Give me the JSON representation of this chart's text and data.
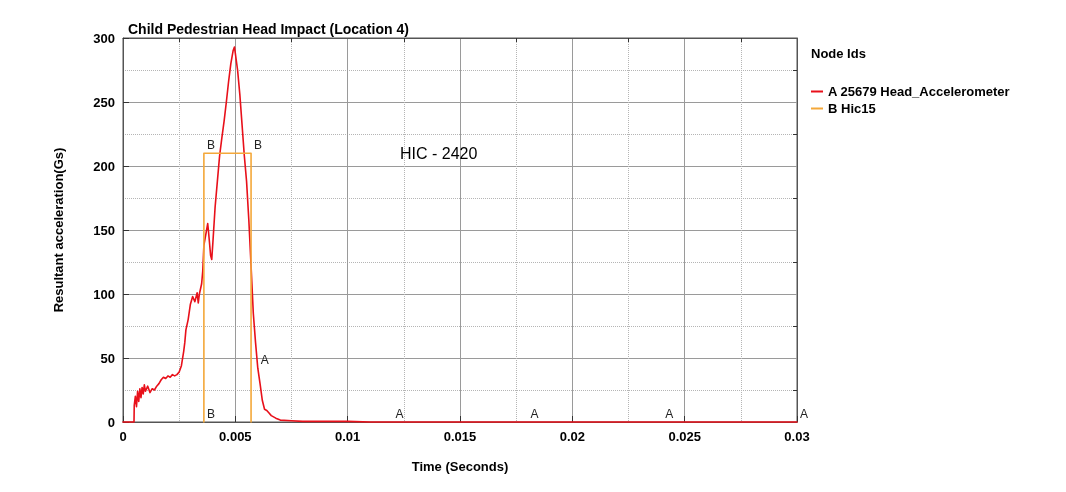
{
  "chart_data": {
    "type": "line",
    "title": "Child Pedestrian Head Impact (Location 4)",
    "xlabel": "Time (Seconds)",
    "ylabel": "Resultant acceleration(Gs)",
    "legend_title": "Node Ids",
    "annotations": [
      "HIC - 2420",
      {
        "text": "A",
        "x": 0.006,
        "y": 42
      },
      {
        "text": "A",
        "x": 0.012,
        "y": 0
      },
      {
        "text": "A",
        "x": 0.018,
        "y": 0
      },
      {
        "text": "A",
        "x": 0.024,
        "y": 0
      },
      {
        "text": "A",
        "x": 0.03,
        "y": 0
      },
      {
        "text": "B",
        "x": 0.0036,
        "y": 210
      },
      {
        "text": "B",
        "x": 0.0057,
        "y": 210
      },
      {
        "text": "B",
        "x": 0.0036,
        "y": 0
      }
    ],
    "series": [
      {
        "name": "A 25679 Head_Accelerometer",
        "color": "#e8101a",
        "x": [
          0,
          0.00049,
          0.0005,
          0.00055,
          0.0006,
          0.00065,
          0.0007,
          0.00075,
          0.0008,
          0.00085,
          0.0009,
          0.00095,
          0.001,
          0.0011,
          0.0012,
          0.0013,
          0.0014,
          0.0015,
          0.0016,
          0.0017,
          0.0018,
          0.0019,
          0.002,
          0.0021,
          0.0022,
          0.0023,
          0.0024,
          0.0025,
          0.0026,
          0.0027,
          0.00275,
          0.0028,
          0.0029,
          0.003,
          0.0031,
          0.0032,
          0.0033,
          0.00335,
          0.0034,
          0.0035,
          0.00355,
          0.0036,
          0.0037,
          0.00377,
          0.0038,
          0.00385,
          0.0039,
          0.00395,
          0.004,
          0.0041,
          0.0042,
          0.0043,
          0.0044,
          0.0045,
          0.0046,
          0.0047,
          0.0048,
          0.0049,
          0.00496,
          0.005,
          0.0051,
          0.0052,
          0.0053,
          0.0054,
          0.0055,
          0.0056,
          0.0057,
          0.0058,
          0.0059,
          0.006,
          0.0061,
          0.0062,
          0.0063,
          0.0064,
          0.0065,
          0.0066,
          0.0068,
          0.007,
          0.0075,
          0.008,
          0.01,
          0.011,
          0.03
        ],
        "values": [
          0,
          0,
          13,
          20,
          12,
          24,
          16,
          26,
          19,
          27,
          22,
          29,
          24,
          28,
          23,
          26,
          25,
          28,
          30,
          33,
          35,
          34,
          36,
          35,
          37,
          36,
          37,
          39,
          44,
          55,
          62,
          72,
          80,
          92,
          98,
          94,
          101,
          93,
          100,
          108,
          118,
          138,
          148,
          155,
          150,
          140,
          130,
          127,
          140,
          168,
          188,
          208,
          222,
          235,
          250,
          266,
          280,
          290,
          293,
          288,
          275,
          256,
          232,
          208,
          188,
          158,
          122,
          85,
          62,
          42,
          30,
          17,
          10,
          9,
          7,
          5,
          3,
          1.5,
          1,
          0.5,
          0.5,
          0,
          0
        ]
      },
      {
        "name": "B Hic15",
        "color": "#f4a83a",
        "x": [
          0.0036,
          0.0036,
          0.0057,
          0.0057
        ],
        "values": [
          0,
          210,
          210,
          0
        ]
      }
    ],
    "xlim": [
      0,
      0.03
    ],
    "xticks": [
      0,
      {
        "value": 0.0025,
        "label": null
      },
      0.005,
      {
        "value": 0.0075,
        "label": null
      },
      0.01,
      {
        "value": 0.0125,
        "label": null
      },
      0.015,
      {
        "value": 0.0175,
        "label": null
      },
      0.02,
      {
        "value": 0.0225,
        "label": null
      },
      0.025,
      {
        "value": 0.0275,
        "label": null
      },
      0.03
    ],
    "ylim": [
      0,
      300
    ],
    "yticks": [
      0,
      {
        "value": 25,
        "label": null
      },
      50,
      {
        "value": 75,
        "label": null
      },
      100,
      {
        "value": 125,
        "label": null
      },
      150,
      {
        "value": 175,
        "label": null
      },
      200,
      {
        "value": 225,
        "label": null
      },
      250,
      {
        "value": 275,
        "label": null
      },
      300
    ],
    "grid": true,
    "legend": "top right",
    "marker": "none"
  }
}
